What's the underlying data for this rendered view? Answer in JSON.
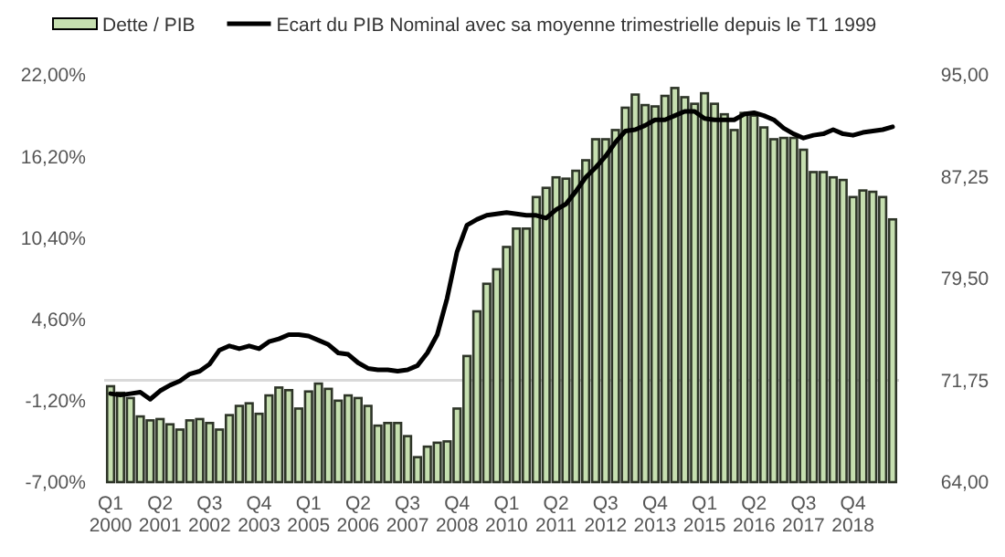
{
  "chart_data": {
    "type": "bar",
    "categories": [
      "Q1 2000",
      null,
      null,
      null,
      null,
      "Q2 2001",
      null,
      null,
      null,
      null,
      "Q3 2002",
      null,
      null,
      null,
      null,
      "Q4 2003",
      null,
      null,
      null,
      null,
      "Q1 2005",
      null,
      null,
      null,
      null,
      "Q2 2006",
      null,
      null,
      null,
      null,
      "Q3 2007",
      null,
      null,
      null,
      null,
      "Q4 2008",
      null,
      null,
      null,
      null,
      "Q1 2010",
      null,
      null,
      null,
      null,
      "Q2 2011",
      null,
      null,
      null,
      null,
      "Q3 2012",
      null,
      null,
      null,
      null,
      "Q4 2013",
      null,
      null,
      null,
      null,
      "Q1 2015",
      null,
      null,
      null,
      null,
      "Q2 2016",
      null,
      null,
      null,
      null,
      "Q3 2017",
      null,
      null,
      null,
      null,
      "Q4 2018",
      null,
      null,
      null,
      null
    ],
    "series": [
      {
        "name": "Dette / PIB",
        "axis": "y2",
        "color": "#c6dfb0",
        "values": [
          71.3,
          70.8,
          70.4,
          69.0,
          68.7,
          68.8,
          68.4,
          68.0,
          68.7,
          68.8,
          68.5,
          68.0,
          69.1,
          69.8,
          70.0,
          69.2,
          70.6,
          71.2,
          71.0,
          69.6,
          70.9,
          71.5,
          71.1,
          70.2,
          70.6,
          70.4,
          69.8,
          68.3,
          68.5,
          68.5,
          67.5,
          65.9,
          66.7,
          67.0,
          67.1,
          69.6,
          73.6,
          77.0,
          79.1,
          80.2,
          81.9,
          83.3,
          83.3,
          85.7,
          86.4,
          87.2,
          87.1,
          87.7,
          88.5,
          90.1,
          90.1,
          90.8,
          92.5,
          93.5,
          92.7,
          92.6,
          93.4,
          94.0,
          93.3,
          92.8,
          93.6,
          92.8,
          92.0,
          90.8,
          92.1,
          91.9,
          91.0,
          90.1,
          90.2,
          90.2,
          89.3,
          87.6,
          87.6,
          87.2,
          87.0,
          85.7,
          86.2,
          86.1,
          85.7,
          84.0
        ]
      },
      {
        "name": "Ecart du PIB Nominal avec sa moyenne trimestrielle depuis le T1 1999",
        "type": "line",
        "axis": "y",
        "color": "#000000",
        "values": [
          -0.7,
          -0.8,
          -0.7,
          -0.6,
          -1.1,
          -0.5,
          -0.1,
          0.2,
          0.7,
          0.9,
          1.4,
          2.4,
          2.7,
          2.5,
          2.7,
          2.5,
          3.0,
          3.2,
          3.5,
          3.5,
          3.4,
          3.1,
          2.8,
          2.2,
          2.1,
          1.5,
          1.1,
          1.0,
          1.0,
          0.9,
          1.0,
          1.3,
          2.2,
          3.5,
          6.1,
          9.4,
          11.3,
          11.7,
          12.0,
          12.1,
          12.2,
          12.1,
          12.0,
          12.0,
          11.8,
          12.4,
          12.8,
          13.7,
          14.7,
          15.4,
          16.2,
          17.2,
          18.0,
          18.1,
          18.4,
          18.8,
          18.8,
          19.1,
          19.4,
          19.4,
          18.9,
          18.8,
          18.8,
          18.8,
          19.2,
          19.3,
          19.1,
          18.8,
          18.2,
          17.8,
          17.5,
          17.7,
          17.8,
          18.1,
          17.8,
          17.7,
          17.9,
          18.0,
          18.1,
          18.3
        ]
      }
    ],
    "ylim": [
      -7,
      22
    ],
    "yticks": [
      {
        "value": 22,
        "label": "22,00%"
      },
      {
        "value": 16.2,
        "label": "16,20%"
      },
      {
        "value": 10.4,
        "label": "10,40%"
      },
      {
        "value": 4.6,
        "label": "4,60%"
      },
      {
        "value": -1.2,
        "label": "-1,20%"
      },
      {
        "value": -7,
        "label": "-7,00%"
      }
    ],
    "y2lim": [
      64,
      95
    ],
    "y2ticks": [
      {
        "value": 95,
        "label": "95,00"
      },
      {
        "value": 87.25,
        "label": "87,25"
      },
      {
        "value": 79.5,
        "label": "79,50"
      },
      {
        "value": 71.75,
        "label": "71,75"
      },
      {
        "value": 64,
        "label": "64,00"
      }
    ],
    "ref_lines": [
      {
        "axis": "y2",
        "value": 71.75,
        "color": "#d9d9d9"
      }
    ],
    "legend": "top"
  }
}
